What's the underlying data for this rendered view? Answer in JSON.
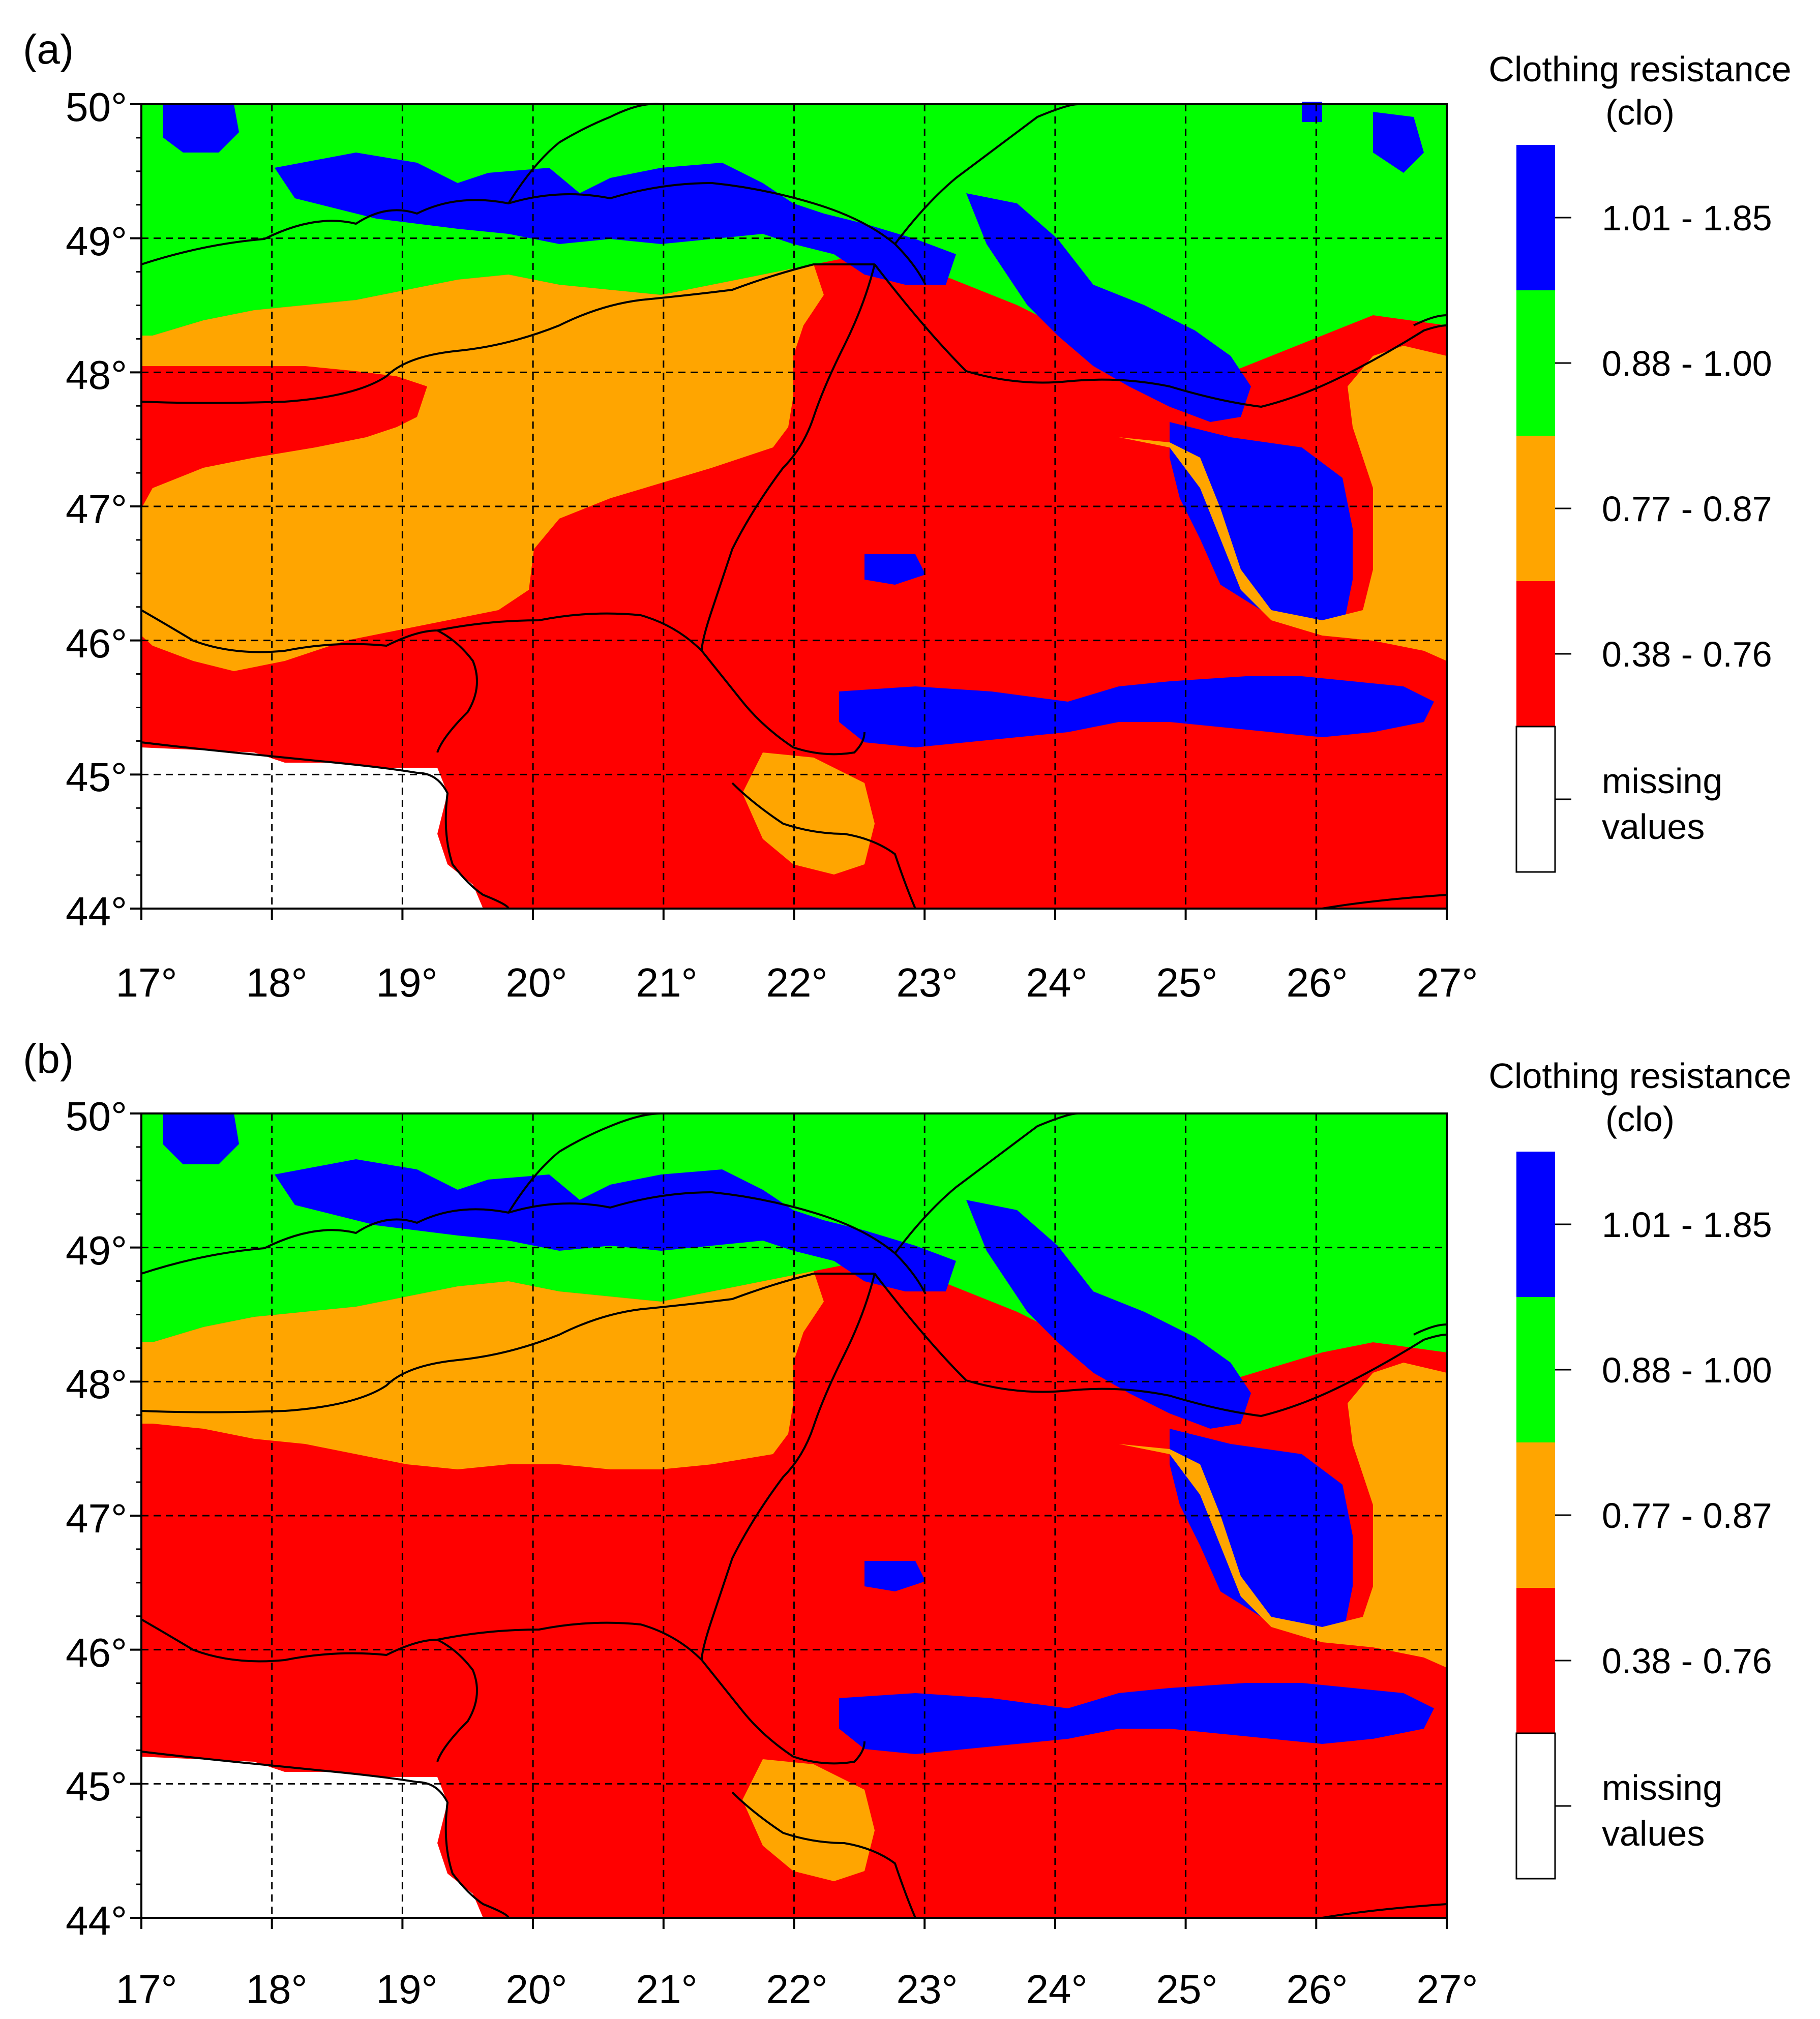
{
  "legend": {
    "title_line1": "Clothing resistance",
    "title_line2": "(clo)",
    "classes": [
      {
        "label": "1.01 - 1.85",
        "color": "#0000ff"
      },
      {
        "label": "0.88 - 1.00",
        "color": "#00ff00"
      },
      {
        "label": "0.77 - 0.87",
        "color": "#ffa500"
      },
      {
        "label": "0.38 - 0.76",
        "color": "#ff0000"
      },
      {
        "label_line1": "missing",
        "label_line2": "values",
        "color": "#ffffff"
      }
    ]
  },
  "axes": {
    "x_ticks": [
      "17°",
      "18°",
      "19°",
      "20°",
      "21°",
      "22°",
      "23°",
      "24°",
      "25°",
      "26°",
      "27°"
    ],
    "y_ticks": [
      "50°",
      "49°",
      "48°",
      "47°",
      "46°",
      "45°",
      "44°"
    ],
    "x_range": [
      17,
      27
    ],
    "y_range": [
      44,
      50
    ],
    "grid": "dashed"
  },
  "panels": [
    {
      "label": "(a)"
    },
    {
      "label": "(b)"
    }
  ]
}
